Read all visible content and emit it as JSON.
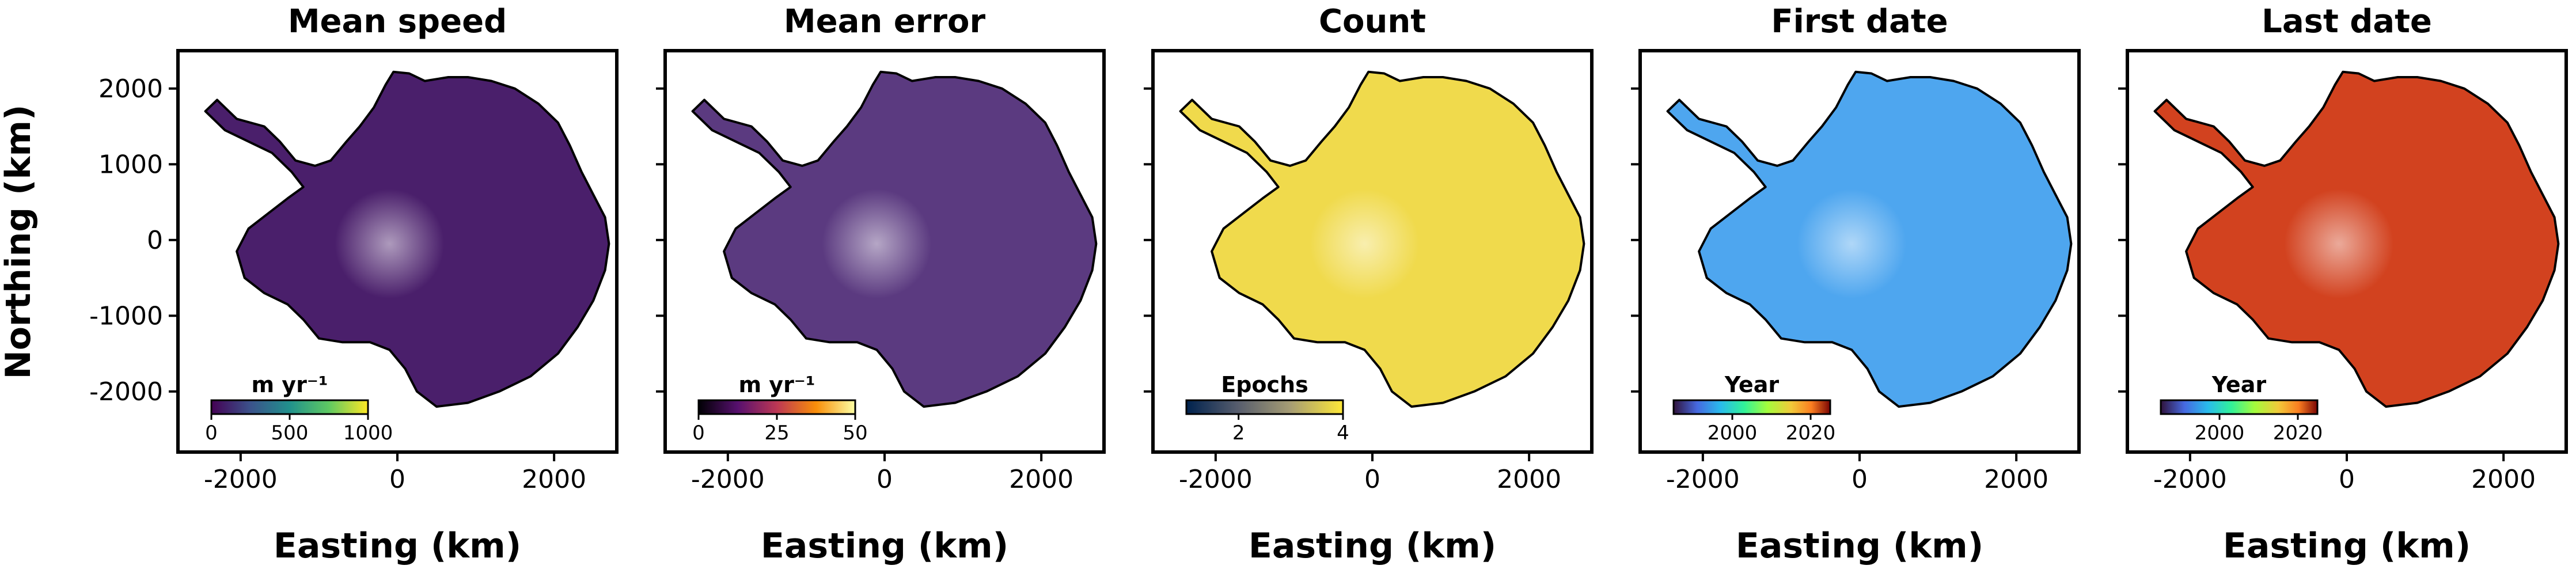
{
  "figure": {
    "ylabel": "Northing (km)",
    "xlabel": "Easting (km)"
  },
  "chart_data": [
    {
      "type": "heatmap",
      "title": "Mean speed",
      "xlabel": "Easting (km)",
      "ylabel": "Northing (km)",
      "xlim": [
        -2800,
        2800
      ],
      "ylim": [
        -2800,
        2500
      ],
      "xticks": [
        "-2000",
        "0",
        "2000"
      ],
      "yticks": [
        "2000",
        "1000",
        "0",
        "-1000",
        "-2000"
      ],
      "colorbar": {
        "label": "m yr⁻¹",
        "colormap": "viridis",
        "range": [
          0,
          1000
        ],
        "ticks": [
          "0",
          "500",
          "1000"
        ]
      },
      "fill_color": "#4a1f6b"
    },
    {
      "type": "heatmap",
      "title": "Mean error",
      "xlabel": "Easting (km)",
      "ylabel": "",
      "xlim": [
        -2800,
        2800
      ],
      "ylim": [
        -2800,
        2500
      ],
      "xticks": [
        "-2000",
        "0",
        "2000"
      ],
      "yticks": [],
      "colorbar": {
        "label": "m yr⁻¹",
        "colormap": "inferno",
        "range": [
          0,
          50
        ],
        "ticks": [
          "0",
          "25",
          "50"
        ]
      },
      "fill_color": "#5b3a80"
    },
    {
      "type": "heatmap",
      "title": "Count",
      "xlabel": "Easting (km)",
      "ylabel": "",
      "xlim": [
        -2800,
        2800
      ],
      "ylim": [
        -2800,
        2500
      ],
      "xticks": [
        "-2000",
        "0",
        "2000"
      ],
      "yticks": [],
      "colorbar": {
        "label": "Epochs",
        "colormap": "cividis",
        "range": [
          1,
          4
        ],
        "ticks": [
          "2",
          "4"
        ]
      },
      "fill_color": "#f0da4c"
    },
    {
      "type": "heatmap",
      "title": "First date",
      "xlabel": "Easting (km)",
      "ylabel": "",
      "xlim": [
        -2800,
        2800
      ],
      "ylim": [
        -2800,
        2500
      ],
      "xticks": [
        "-2000",
        "0",
        "2000"
      ],
      "yticks": [],
      "colorbar": {
        "label": "Year",
        "colormap": "turbo",
        "range": [
          1985,
          2025
        ],
        "ticks": [
          "2000",
          "2020"
        ]
      },
      "fill_color": "#4ea6ef"
    },
    {
      "type": "heatmap",
      "title": "Last date",
      "xlabel": "Easting (km)",
      "ylabel": "",
      "xlim": [
        -2800,
        2800
      ],
      "ylim": [
        -2800,
        2500
      ],
      "xticks": [
        "-2000",
        "0",
        "2000"
      ],
      "yticks": [],
      "colorbar": {
        "label": "Year",
        "colormap": "turbo",
        "range": [
          1985,
          2025
        ],
        "ticks": [
          "2000",
          "2020"
        ]
      },
      "fill_color": "#d2421f"
    }
  ]
}
